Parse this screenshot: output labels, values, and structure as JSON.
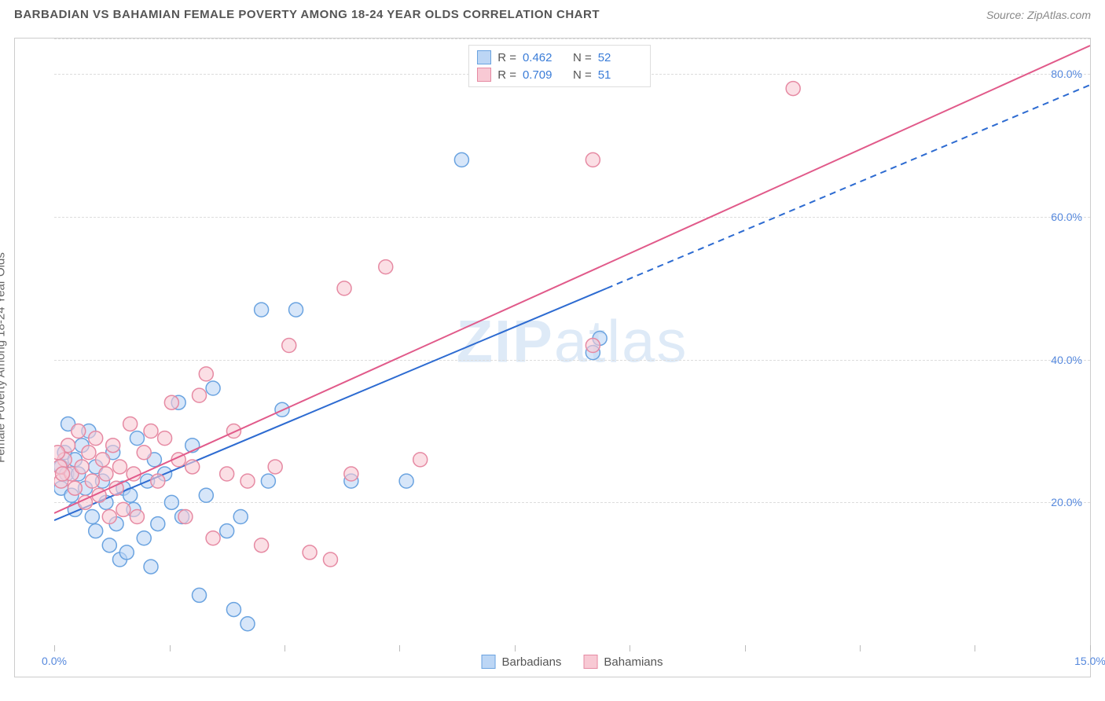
{
  "title": "BARBADIAN VS BAHAMIAN FEMALE POVERTY AMONG 18-24 YEAR OLDS CORRELATION CHART",
  "source": "Source: ZipAtlas.com",
  "y_axis_label": "Female Poverty Among 18-24 Year Olds",
  "watermark_a": "ZIP",
  "watermark_b": "atlas",
  "chart": {
    "type": "scatter",
    "xlim": [
      0,
      15
    ],
    "ylim": [
      0,
      85
    ],
    "x_tick_labels": {
      "0": "0.0%",
      "15": "15.0%"
    },
    "x_tick_positions": [
      0,
      1.67,
      3.33,
      5.0,
      6.67,
      8.33,
      10.0,
      11.67,
      13.33,
      15.0
    ],
    "y_gridlines": [
      20,
      40,
      60,
      80,
      85
    ],
    "y_tick_labels": {
      "20": "20.0%",
      "40": "40.0%",
      "60": "60.0%",
      "80": "80.0%"
    },
    "background_color": "#ffffff",
    "grid_color": "#dddddd",
    "axis_label_color": "#5588dd",
    "marker_radius": 9,
    "marker_stroke_width": 1.5,
    "series": [
      {
        "name": "Barbadians",
        "fill": "#bcd6f5",
        "stroke": "#6aa3e0",
        "line_color": "#2d6bd1",
        "r_value": "0.462",
        "n_value": "52",
        "trend": {
          "x1": 0,
          "y1": 17.5,
          "x2": 8.0,
          "y2": 50.0,
          "dash_x2": 15.0,
          "dash_y2": 78.5
        },
        "points": [
          [
            0.1,
            22
          ],
          [
            0.1,
            25
          ],
          [
            0.15,
            27
          ],
          [
            0.18,
            24
          ],
          [
            0.2,
            31
          ],
          [
            0.25,
            21
          ],
          [
            0.3,
            26
          ],
          [
            0.3,
            19
          ],
          [
            0.35,
            24
          ],
          [
            0.4,
            28
          ],
          [
            0.45,
            22
          ],
          [
            0.5,
            30
          ],
          [
            0.55,
            18
          ],
          [
            0.6,
            25
          ],
          [
            0.6,
            16
          ],
          [
            0.7,
            23
          ],
          [
            0.75,
            20
          ],
          [
            0.8,
            14
          ],
          [
            0.85,
            27
          ],
          [
            0.9,
            17
          ],
          [
            0.95,
            12
          ],
          [
            1.0,
            22
          ],
          [
            1.05,
            13
          ],
          [
            1.1,
            21
          ],
          [
            1.15,
            19
          ],
          [
            1.2,
            29
          ],
          [
            1.3,
            15
          ],
          [
            1.35,
            23
          ],
          [
            1.4,
            11
          ],
          [
            1.45,
            26
          ],
          [
            1.5,
            17
          ],
          [
            1.6,
            24
          ],
          [
            1.7,
            20
          ],
          [
            1.8,
            34
          ],
          [
            1.85,
            18
          ],
          [
            2.0,
            28
          ],
          [
            2.1,
            7
          ],
          [
            2.2,
            21
          ],
          [
            2.3,
            36
          ],
          [
            2.5,
            16
          ],
          [
            2.6,
            5
          ],
          [
            2.7,
            18
          ],
          [
            2.8,
            3
          ],
          [
            3.0,
            47
          ],
          [
            3.1,
            23
          ],
          [
            3.3,
            33
          ],
          [
            3.5,
            47
          ],
          [
            4.3,
            23
          ],
          [
            5.1,
            23
          ],
          [
            5.9,
            68
          ],
          [
            7.8,
            41
          ],
          [
            7.9,
            43
          ]
        ]
      },
      {
        "name": "Bahamians",
        "fill": "#f8c9d4",
        "stroke": "#e68aa3",
        "line_color": "#e15a8a",
        "r_value": "0.709",
        "n_value": "51",
        "trend": {
          "x1": 0,
          "y1": 18.5,
          "x2": 15.0,
          "y2": 84.0
        },
        "points": [
          [
            0.1,
            23
          ],
          [
            0.15,
            26
          ],
          [
            0.2,
            28
          ],
          [
            0.25,
            24
          ],
          [
            0.3,
            22
          ],
          [
            0.35,
            30
          ],
          [
            0.4,
            25
          ],
          [
            0.45,
            20
          ],
          [
            0.5,
            27
          ],
          [
            0.55,
            23
          ],
          [
            0.6,
            29
          ],
          [
            0.65,
            21
          ],
          [
            0.7,
            26
          ],
          [
            0.75,
            24
          ],
          [
            0.8,
            18
          ],
          [
            0.85,
            28
          ],
          [
            0.9,
            22
          ],
          [
            0.95,
            25
          ],
          [
            1.0,
            19
          ],
          [
            1.1,
            31
          ],
          [
            1.15,
            24
          ],
          [
            1.2,
            18
          ],
          [
            1.3,
            27
          ],
          [
            1.4,
            30
          ],
          [
            1.5,
            23
          ],
          [
            1.6,
            29
          ],
          [
            1.7,
            34
          ],
          [
            1.8,
            26
          ],
          [
            1.9,
            18
          ],
          [
            2.0,
            25
          ],
          [
            2.1,
            35
          ],
          [
            2.2,
            38
          ],
          [
            2.3,
            15
          ],
          [
            2.5,
            24
          ],
          [
            2.6,
            30
          ],
          [
            2.8,
            23
          ],
          [
            3.0,
            14
          ],
          [
            3.2,
            25
          ],
          [
            3.4,
            42
          ],
          [
            3.7,
            13
          ],
          [
            4.0,
            12
          ],
          [
            4.2,
            50
          ],
          [
            4.3,
            24
          ],
          [
            4.8,
            53
          ],
          [
            5.3,
            26
          ],
          [
            7.8,
            42
          ],
          [
            7.8,
            68
          ],
          [
            10.7,
            78
          ],
          [
            0.05,
            27
          ],
          [
            0.08,
            25
          ],
          [
            0.12,
            24
          ]
        ]
      }
    ]
  },
  "legend_stats_label_r": "R =",
  "legend_stats_label_n": "N ="
}
